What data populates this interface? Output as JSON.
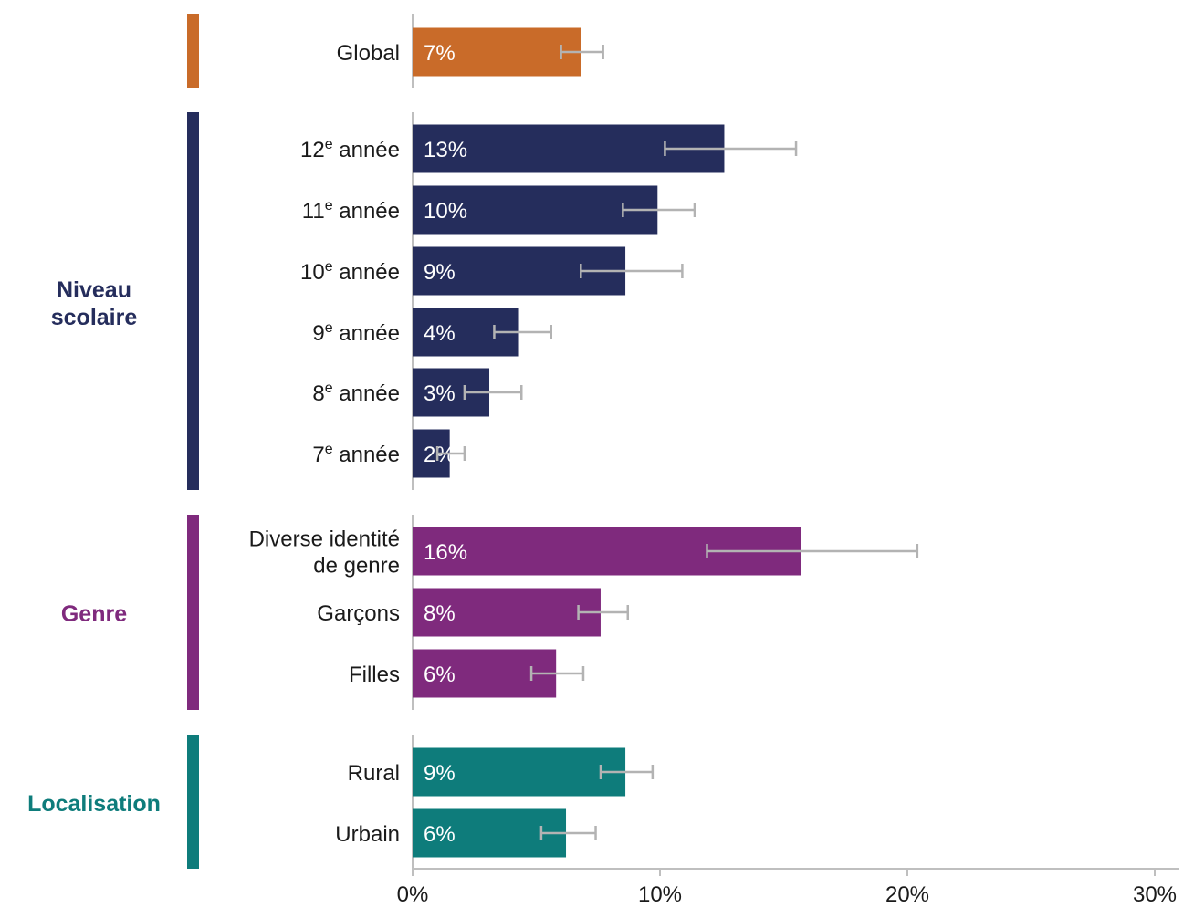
{
  "chart_data": {
    "type": "bar",
    "orientation": "horizontal",
    "x_ticks": [
      "0%",
      "10%",
      "20%",
      "30%"
    ],
    "xlim": [
      0,
      30
    ],
    "grid": false,
    "groups": [
      {
        "label": "",
        "color": "#C96B29",
        "bars": [
          {
            "label": "Global",
            "value": 6.8,
            "display": "7%",
            "err_low": 6.0,
            "err_high": 7.7
          }
        ]
      },
      {
        "label": "Niveau scolaire",
        "label_lines": [
          "Niveau",
          "scolaire"
        ],
        "color": "#252D5C",
        "bars": [
          {
            "label": "12e année",
            "base": "12",
            "sup": "e",
            "rest": " année",
            "value": 12.6,
            "display": "13%",
            "err_low": 10.2,
            "err_high": 15.5
          },
          {
            "label": "11e année",
            "base": "11",
            "sup": "e",
            "rest": " année",
            "value": 9.9,
            "display": "10%",
            "err_low": 8.5,
            "err_high": 11.4
          },
          {
            "label": "10e année",
            "base": "10",
            "sup": "e",
            "rest": " année",
            "value": 8.6,
            "display": "9%",
            "err_low": 6.8,
            "err_high": 10.9
          },
          {
            "label": "9e année",
            "base": "9",
            "sup": "e",
            "rest": " année",
            "value": 4.3,
            "display": "4%",
            "err_low": 3.3,
            "err_high": 5.6
          },
          {
            "label": "8e année",
            "base": "8",
            "sup": "e",
            "rest": " année",
            "value": 3.1,
            "display": "3%",
            "err_low": 2.1,
            "err_high": 4.4
          },
          {
            "label": "7e année",
            "base": "7",
            "sup": "e",
            "rest": " année",
            "value": 1.5,
            "display": "2%",
            "err_low": 1.0,
            "err_high": 2.1
          }
        ]
      },
      {
        "label": "Genre",
        "label_lines": [
          "Genre"
        ],
        "color": "#7F2A7D",
        "bars": [
          {
            "label": "Diverse identité de genre",
            "label_lines": [
              "Diverse identité",
              "de genre"
            ],
            "value": 15.7,
            "display": "16%",
            "err_low": 11.9,
            "err_high": 20.4
          },
          {
            "label": "Garçons",
            "value": 7.6,
            "display": "8%",
            "err_low": 6.7,
            "err_high": 8.7
          },
          {
            "label": "Filles",
            "value": 5.8,
            "display": "6%",
            "err_low": 4.8,
            "err_high": 6.9
          }
        ]
      },
      {
        "label": "Localisation",
        "label_lines": [
          "Localisation"
        ],
        "color": "#0E7C7B",
        "bars": [
          {
            "label": "Rural",
            "value": 8.6,
            "display": "9%",
            "err_low": 7.6,
            "err_high": 9.7
          },
          {
            "label": "Urbain",
            "value": 6.2,
            "display": "6%",
            "err_low": 5.2,
            "err_high": 7.4
          }
        ]
      }
    ],
    "error_bar_color": "#B3B3B3",
    "axis_color": "#BFBFBF"
  }
}
